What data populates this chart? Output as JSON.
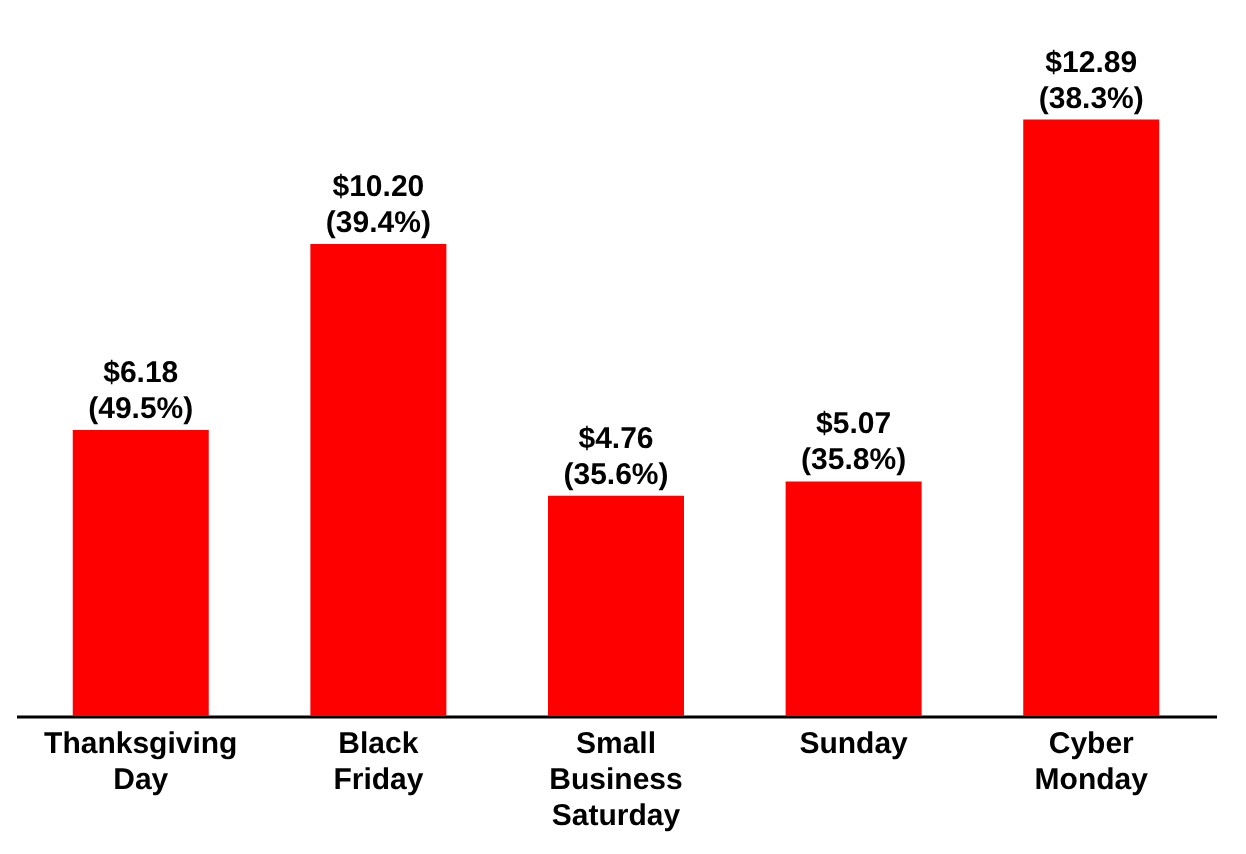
{
  "chart_data": {
    "type": "bar",
    "categories": [
      "Thanksgiving Day",
      "Black Friday",
      "Small Business Saturday",
      "Sunday",
      "Cyber Monday"
    ],
    "values": [
      6.18,
      10.2,
      4.76,
      5.07,
      12.89
    ],
    "value_labels": [
      "$6.18\n(49.5%)",
      "$10.20\n(39.4%)",
      "$4.76\n(35.6%)",
      "$5.07\n(35.8%)",
      "$12.89\n(38.3%)"
    ],
    "color": "#ff0000"
  }
}
